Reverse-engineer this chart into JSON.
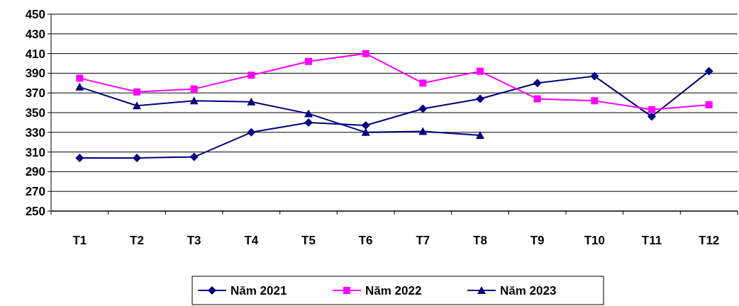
{
  "chart_data": {
    "type": "line",
    "categories": [
      "T1",
      "T2",
      "T3",
      "T4",
      "T5",
      "T6",
      "T7",
      "T8",
      "T9",
      "T10",
      "T11",
      "T12"
    ],
    "ylim": [
      250,
      450
    ],
    "yticks": [
      250,
      270,
      290,
      310,
      330,
      350,
      370,
      390,
      410,
      430,
      450
    ],
    "grid": "y",
    "legend": "bottom",
    "series": [
      {
        "name": "Năm 2021",
        "color": "#000080",
        "marker": "diamond",
        "values": [
          304,
          304,
          305,
          330,
          340,
          337,
          354,
          364,
          380,
          387,
          346,
          392
        ]
      },
      {
        "name": "Năm 2022",
        "color": "#ff00ff",
        "marker": "square",
        "values": [
          385,
          371,
          374,
          388,
          402,
          410,
          380,
          392,
          364,
          362,
          353,
          358
        ]
      },
      {
        "name": "Năm 2023",
        "color": "#000080",
        "marker": "triangle",
        "values": [
          376,
          357,
          362,
          361,
          349,
          330,
          331,
          327,
          null,
          null,
          null,
          null
        ]
      }
    ]
  }
}
